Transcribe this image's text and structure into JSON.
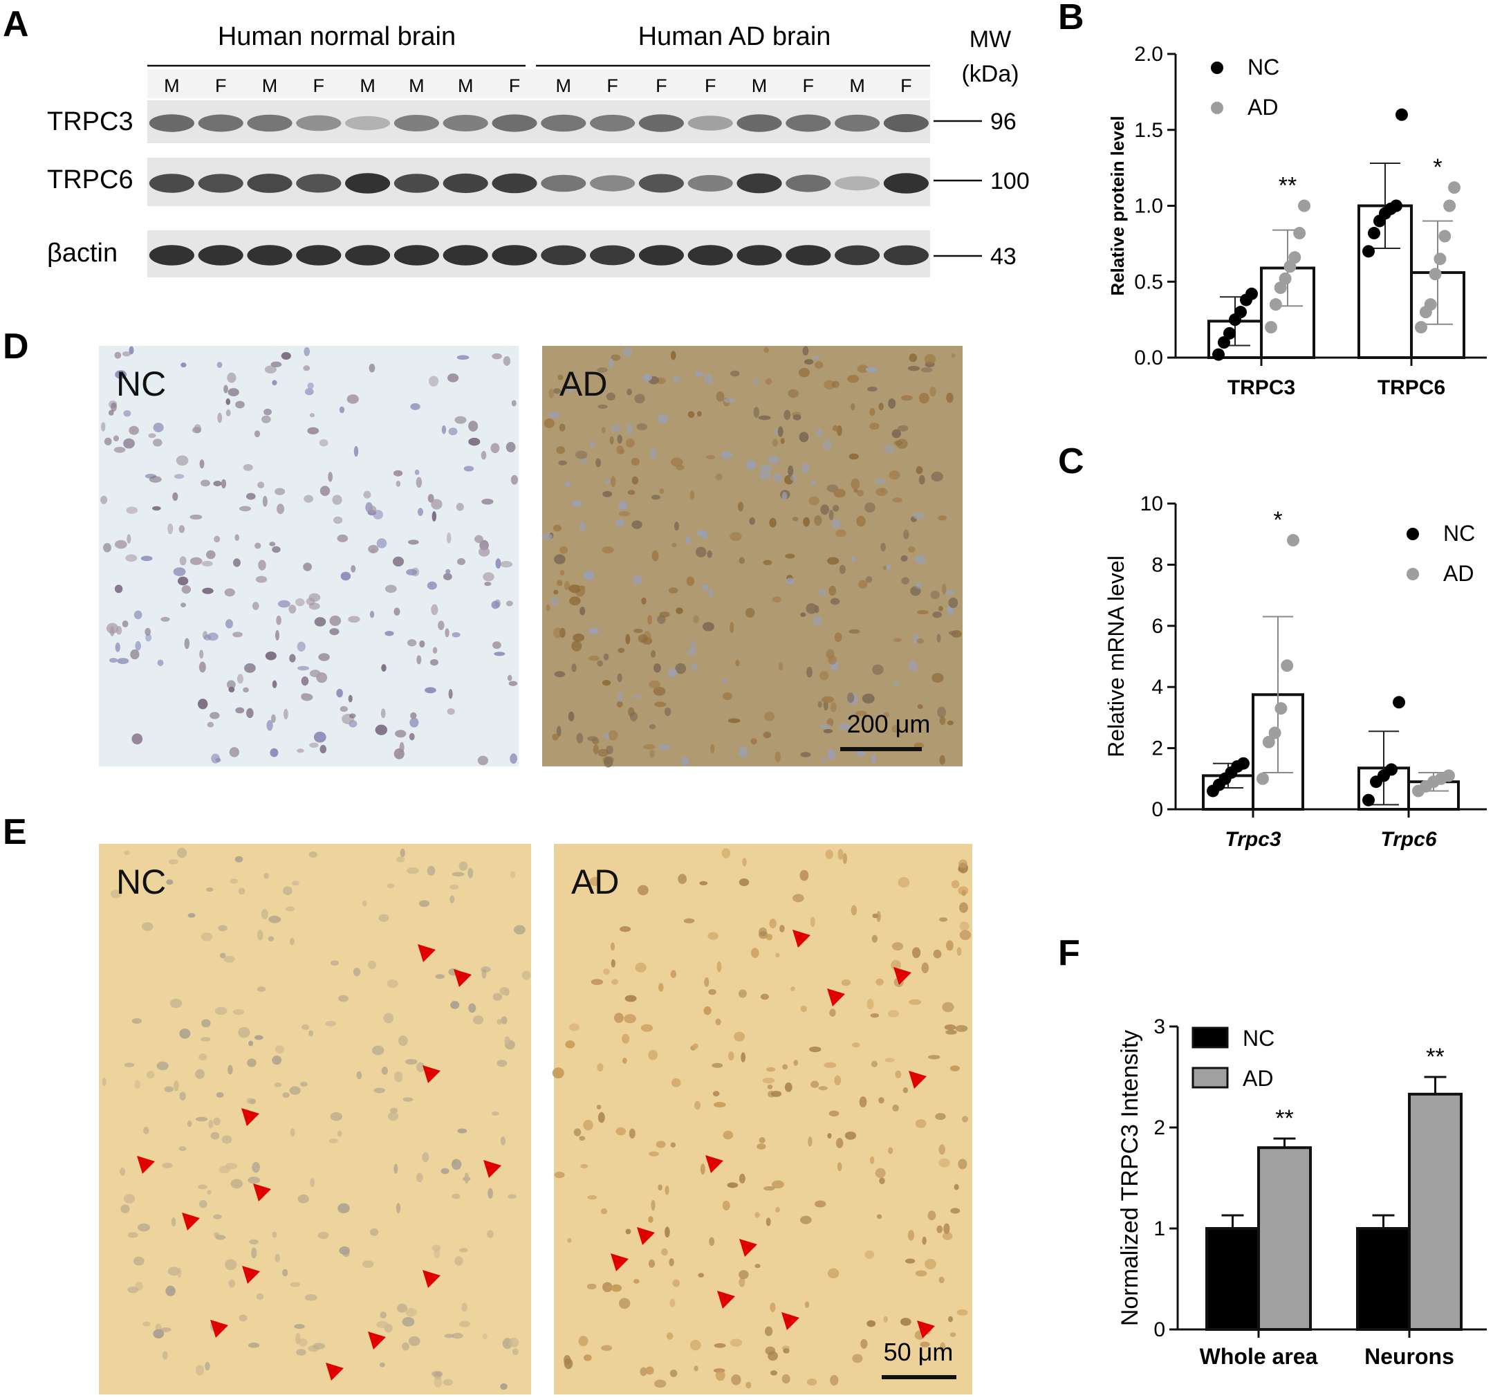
{
  "panels": {
    "A": {
      "letter": "A",
      "group_normal": "Human normal brain",
      "group_ad": "Human AD brain",
      "mw_label": "MW",
      "mw_unit": "(kDa)",
      "sex_labels": [
        "M",
        "F",
        "M",
        "F",
        "M",
        "M",
        "M",
        "F",
        "M",
        "F",
        "F",
        "F",
        "M",
        "F",
        "M",
        "F"
      ],
      "bands": [
        {
          "name": "TRPC3",
          "mw": "96",
          "intensity": [
            0.62,
            0.58,
            0.55,
            0.4,
            0.2,
            0.5,
            0.5,
            0.6,
            0.55,
            0.52,
            0.62,
            0.3,
            0.62,
            0.58,
            0.55,
            0.68
          ]
        },
        {
          "name": "TRPC6",
          "mw": "100",
          "intensity": [
            0.8,
            0.78,
            0.82,
            0.76,
            0.95,
            0.8,
            0.85,
            0.88,
            0.55,
            0.45,
            0.75,
            0.5,
            0.9,
            0.6,
            0.2,
            0.95
          ]
        },
        {
          "name": "βactin",
          "mw": "43",
          "intensity": [
            0.95,
            0.95,
            0.95,
            0.95,
            0.95,
            0.95,
            0.95,
            0.95,
            0.9,
            0.9,
            0.95,
            0.95,
            0.95,
            0.95,
            0.9,
            0.9
          ]
        }
      ]
    },
    "D": {
      "letter": "D",
      "images": [
        {
          "label": "NC",
          "bg": "#e7eef2",
          "dot_colors": [
            "#8a8cb8",
            "#9b8f9a",
            "#7a6a80",
            "#a89aa8"
          ],
          "dot_count": 260
        },
        {
          "label": "AD",
          "bg": "#b09a72",
          "dot_colors": [
            "#8d6a3a",
            "#7e6a55",
            "#9aa0b4",
            "#a07a48"
          ],
          "dot_count": 340
        }
      ],
      "scalebar": "200 μm"
    },
    "E": {
      "letter": "E",
      "images": [
        {
          "label": "NC",
          "bg": "#ecd49c",
          "dot_colors": [
            "#c2b08f",
            "#b8a98c",
            "#a9a090",
            "#cdb890"
          ],
          "dot_count": 220
        },
        {
          "label": "AD",
          "bg": "#ecd298",
          "dot_colors": [
            "#c79a5a",
            "#b68b55",
            "#d2a86a",
            "#a8834f"
          ],
          "dot_count": 240
        }
      ],
      "scalebar": "50 μm",
      "arrow_color": "#e00000"
    }
  },
  "chart_data": [
    {
      "panel": "B",
      "type": "bar",
      "ylabel": "Relative protein level",
      "ylim": [
        0,
        2.0
      ],
      "yticks": [
        "0.0",
        "0.5",
        "1.0",
        "1.5",
        "2.0"
      ],
      "categories": [
        "TRPC3",
        "TRPC6"
      ],
      "legend": "top-left",
      "series": [
        {
          "name": "NC",
          "color": "#000000",
          "values": [
            0.24,
            1.0
          ],
          "errors": [
            0.16,
            0.28
          ],
          "points": [
            [
              0.02,
              0.1,
              0.16,
              0.25,
              0.3,
              0.38,
              0.42
            ],
            [
              0.7,
              0.82,
              0.9,
              0.95,
              0.98,
              1.0,
              1.6
            ]
          ]
        },
        {
          "name": "AD",
          "color": "#9e9e9e",
          "values": [
            0.59,
            0.56
          ],
          "errors": [
            0.25,
            0.34
          ],
          "points": [
            [
              0.2,
              0.35,
              0.46,
              0.52,
              0.6,
              0.66,
              0.82,
              1.0
            ],
            [
              0.2,
              0.3,
              0.35,
              0.55,
              0.65,
              0.8,
              1.0,
              1.12
            ]
          ]
        }
      ],
      "significance": [
        "**",
        "*"
      ]
    },
    {
      "panel": "C",
      "type": "bar",
      "ylabel": "Relative mRNA level",
      "ylim": [
        0,
        10
      ],
      "yticks": [
        "0",
        "2",
        "4",
        "6",
        "8",
        "10"
      ],
      "categories": [
        "Trpc3",
        "Trpc6"
      ],
      "legend": "top-right",
      "series": [
        {
          "name": "NC",
          "color": "#000000",
          "values": [
            1.1,
            1.35
          ],
          "errors": [
            0.4,
            1.2
          ],
          "points": [
            [
              0.6,
              0.8,
              1.0,
              1.2,
              1.4,
              1.5
            ],
            [
              0.3,
              0.9,
              1.1,
              1.3,
              3.5
            ]
          ]
        },
        {
          "name": "AD",
          "color": "#9e9e9e",
          "values": [
            3.75,
            0.9
          ],
          "errors": [
            2.55,
            0.3
          ],
          "points": [
            [
              1.0,
              2.2,
              2.5,
              3.3,
              4.7,
              8.8
            ],
            [
              0.6,
              0.75,
              0.9,
              1.0,
              1.1
            ]
          ]
        }
      ],
      "significance": [
        "*",
        ""
      ]
    },
    {
      "panel": "F",
      "type": "bar",
      "ylabel": "Normalized TRPC3 Intensity",
      "ylim": [
        0,
        3
      ],
      "yticks": [
        "0",
        "1",
        "2",
        "3"
      ],
      "categories": [
        "Whole area",
        "Neurons"
      ],
      "legend": "top-left",
      "series": [
        {
          "name": "NC",
          "color": "#000000",
          "values": [
            1.0,
            1.0
          ],
          "errors": [
            0.13,
            0.13
          ]
        },
        {
          "name": "AD",
          "color": "#a0a0a0",
          "values": [
            1.8,
            2.33
          ],
          "errors": [
            0.09,
            0.17
          ]
        }
      ],
      "significance": [
        "**",
        "**"
      ]
    }
  ]
}
